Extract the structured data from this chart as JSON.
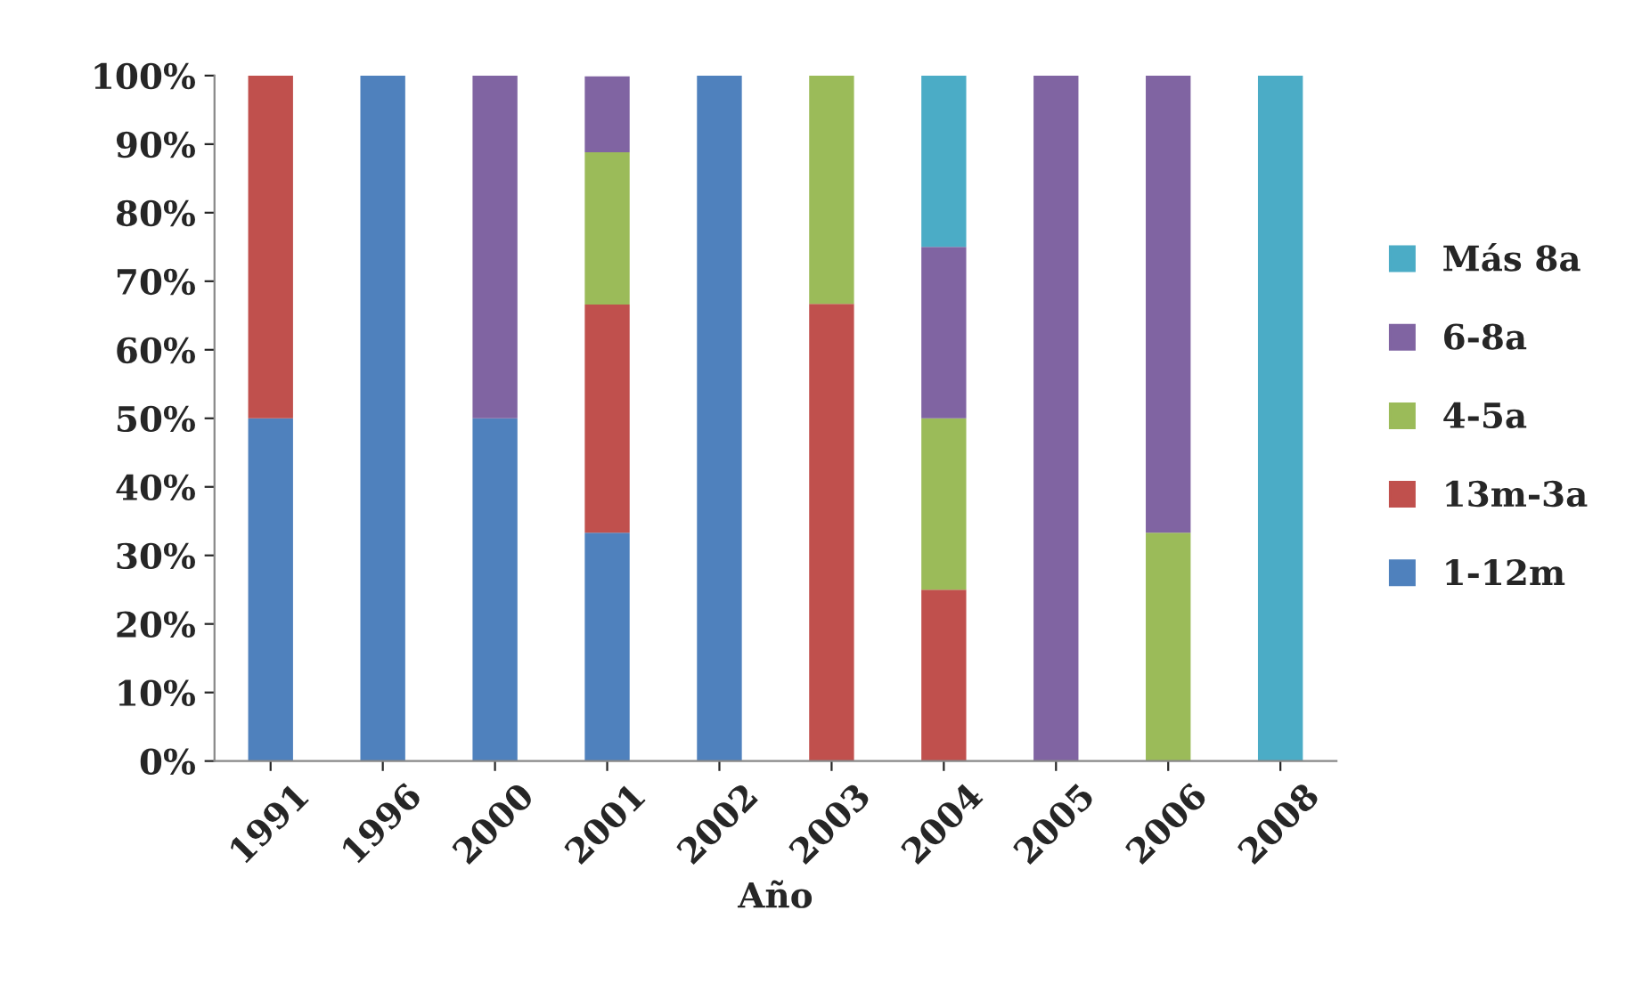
{
  "chart_data": {
    "type": "bar",
    "stacked": true,
    "xlabel": "Año",
    "categories": [
      "1991",
      "1996",
      "2000",
      "2001",
      "2002",
      "2003",
      "2004",
      "2005",
      "2006",
      "2008"
    ],
    "series": [
      {
        "name": "1-12m",
        "color": "#4f81bd",
        "values": [
          50,
          100,
          50,
          33.3,
          100,
          null,
          null,
          null,
          null,
          null
        ]
      },
      {
        "name": "13m-3a",
        "color": "#c0504d",
        "values": [
          50,
          null,
          null,
          33.3,
          null,
          66.7,
          25,
          null,
          null,
          null
        ]
      },
      {
        "name": "4-5a",
        "color": "#9bbb59",
        "values": [
          null,
          null,
          null,
          22.2,
          null,
          33.3,
          25,
          null,
          33.3,
          null
        ]
      },
      {
        "name": "6-8a",
        "color": "#8064a2",
        "values": [
          null,
          null,
          50,
          11.1,
          null,
          null,
          25,
          100,
          66.7,
          null
        ]
      },
      {
        "name": "Más 8a",
        "color": "#4bacc6",
        "values": [
          null,
          null,
          null,
          null,
          null,
          null,
          25,
          null,
          null,
          100
        ]
      }
    ],
    "ylim": [
      0,
      100
    ],
    "yticks": [
      {
        "value": 0,
        "label": "0%"
      },
      {
        "value": 10,
        "label": "10%"
      },
      {
        "value": 20,
        "label": "20%"
      },
      {
        "value": 30,
        "label": "30%"
      },
      {
        "value": 40,
        "label": "40%"
      },
      {
        "value": 50,
        "label": "50%"
      },
      {
        "value": 60,
        "label": "60%"
      },
      {
        "value": 70,
        "label": "70%"
      },
      {
        "value": 80,
        "label": "80%"
      },
      {
        "value": 90,
        "label": "90%"
      },
      {
        "value": 100,
        "label": "100%"
      }
    ],
    "grid": false,
    "legend": "right"
  }
}
